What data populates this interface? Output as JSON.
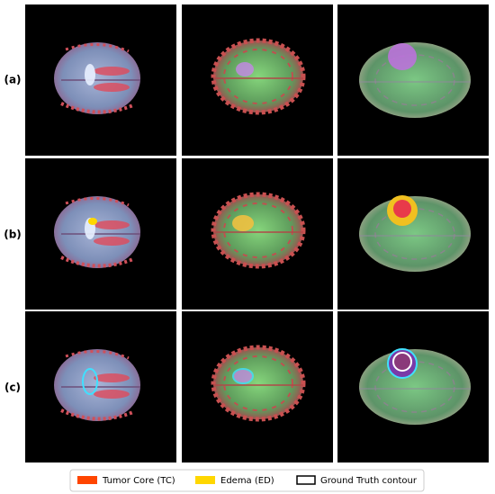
{
  "row_labels": [
    "(a)",
    "(b)",
    "(c)"
  ],
  "legend": {
    "items": [
      "Tumor Core (TC)",
      "Edema (ED)",
      "Ground Truth contour"
    ]
  }
}
